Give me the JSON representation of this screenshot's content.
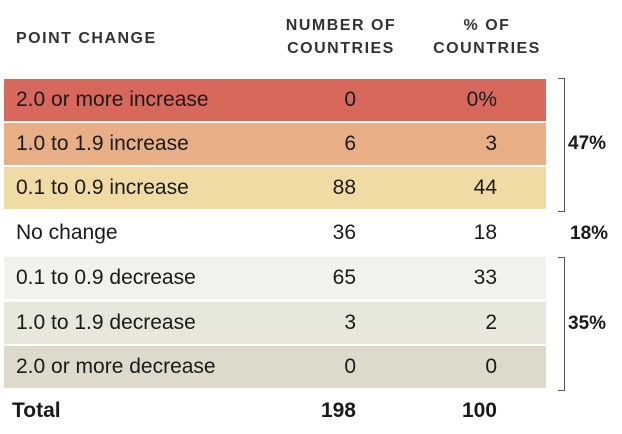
{
  "headers": {
    "point_change": "POINT CHANGE",
    "number_line1": "NUMBER OF",
    "number_line2": "COUNTRIES",
    "pct_line1": "% OF",
    "pct_line2": "COUNTRIES"
  },
  "groups": {
    "increase": "47%",
    "no_change": "18%",
    "decrease": "35%"
  },
  "colors": {
    "row0": "#D9685C",
    "row1": "#E8AF86",
    "row2": "#EFDBA3",
    "row3": "#FFFFFF",
    "row4": "#F2F2EC",
    "row5": "#E8E7DC",
    "row6": "#DDDACB"
  },
  "chart_data": {
    "type": "table",
    "columns": [
      "POINT CHANGE",
      "NUMBER OF COUNTRIES",
      "% OF COUNTRIES"
    ],
    "rows": [
      {
        "label": "2.0 or more increase",
        "count": "0",
        "pct": "0%"
      },
      {
        "label": "1.0 to 1.9 increase",
        "count": "6",
        "pct": "3"
      },
      {
        "label": "0.1 to 0.9 increase",
        "count": "88",
        "pct": "44"
      },
      {
        "label": "No change",
        "count": "36",
        "pct": "18"
      },
      {
        "label": "0.1 to 0.9 decrease",
        "count": "65",
        "pct": "33"
      },
      {
        "label": "1.0 to 1.9 decrease",
        "count": "3",
        "pct": "2"
      },
      {
        "label": "2.0 or more decrease",
        "count": "0",
        "pct": "0"
      }
    ],
    "total": {
      "label": "Total",
      "count": "198",
      "pct": "100"
    }
  }
}
